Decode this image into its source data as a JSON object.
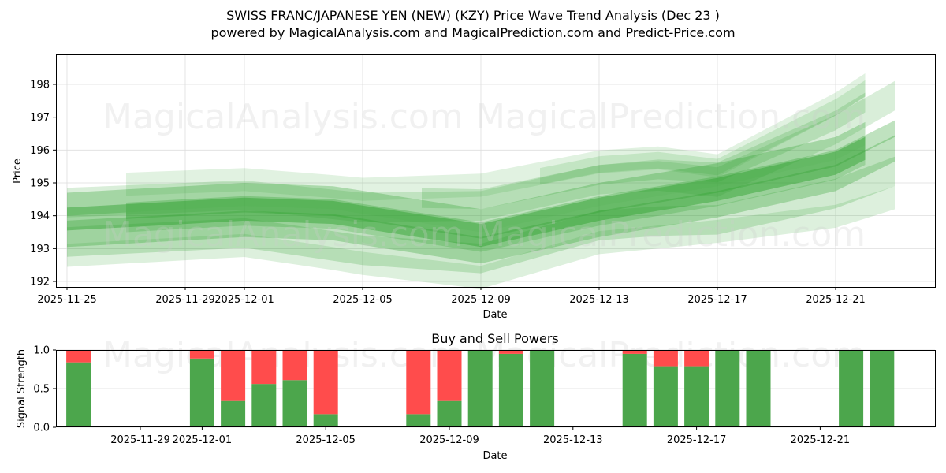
{
  "header": {
    "title": "SWISS FRANC/JAPANESE YEN (NEW) (KZY) Price Wave Trend Analysis (Dec 23 )",
    "subtitle": "powered by MagicalAnalysis.com and MagicalPrediction.com and Predict-Price.com"
  },
  "watermarks": [
    "MagicalAnalysis.com",
    "MagicalPrediction.com"
  ],
  "colors": {
    "wave": "#2ca02c",
    "buy": "#4ca64c",
    "sell": "#ff4c4c",
    "grid": "#dddddd"
  },
  "chart_data": [
    {
      "type": "area",
      "title": "",
      "xlabel": "Date",
      "ylabel": "Price",
      "ylim": [
        191.9,
        198.9
      ],
      "yticks": [
        192,
        193,
        194,
        195,
        196,
        197,
        198
      ],
      "xticks": [
        "2025-11-25",
        "2025-11-29",
        "2025-12-01",
        "2025-12-05",
        "2025-12-09",
        "2025-12-13",
        "2025-12-17",
        "2025-12-21"
      ],
      "grid": true,
      "description": "Overlapping translucent green wave bands showing price trend",
      "center_trend": {
        "x": [
          "2025-11-25",
          "2025-12-01",
          "2025-12-04",
          "2025-12-09",
          "2025-12-13",
          "2025-12-17",
          "2025-12-21",
          "2025-12-23"
        ],
        "y": [
          193.9,
          194.2,
          194.1,
          193.4,
          194.2,
          194.8,
          195.6,
          196.5
        ]
      },
      "upper_envelope": {
        "x": [
          "2025-11-25",
          "2025-12-01",
          "2025-12-05",
          "2025-12-09",
          "2025-12-13",
          "2025-12-15",
          "2025-12-17",
          "2025-12-21",
          "2025-12-23"
        ],
        "y": [
          195.0,
          195.2,
          194.9,
          195.1,
          195.8,
          195.9,
          195.6,
          197.6,
          198.8
        ]
      },
      "lower_envelope": {
        "x": [
          "2025-11-25",
          "2025-12-01",
          "2025-12-05",
          "2025-12-09",
          "2025-12-13",
          "2025-12-17",
          "2025-12-21",
          "2025-12-23"
        ],
        "y": [
          192.6,
          192.9,
          192.3,
          191.9,
          193.0,
          193.3,
          193.7,
          194.2
        ]
      }
    },
    {
      "type": "bar",
      "title": "Buy and Sell Powers",
      "xlabel": "Date",
      "ylabel": "Signal Strength",
      "ylim": [
        0,
        1
      ],
      "yticks": [
        "0.0",
        "0.5",
        "1.0"
      ],
      "xticks": [
        "2025-11-29",
        "2025-12-01",
        "2025-12-05",
        "2025-12-09",
        "2025-12-13",
        "2025-12-17",
        "2025-12-21"
      ],
      "grid": true,
      "categories": [
        "2025-11-27",
        "2025-12-01",
        "2025-12-02",
        "2025-12-03",
        "2025-12-04",
        "2025-12-05",
        "2025-12-08",
        "2025-12-09",
        "2025-12-10",
        "2025-12-11",
        "2025-12-12",
        "2025-12-15",
        "2025-12-16",
        "2025-12-17",
        "2025-12-18",
        "2025-12-19",
        "2025-12-22",
        "2025-12-23"
      ],
      "series": [
        {
          "name": "Buy",
          "values": [
            0.84,
            0.89,
            0.34,
            0.56,
            0.61,
            0.17,
            0.17,
            0.34,
            1.0,
            0.95,
            1.0,
            0.95,
            0.79,
            0.79,
            1.0,
            1.0,
            1.0,
            1.0
          ]
        },
        {
          "name": "Sell",
          "values": [
            0.16,
            0.11,
            0.66,
            0.44,
            0.39,
            0.83,
            0.83,
            0.66,
            0.0,
            0.05,
            0.0,
            0.05,
            0.21,
            0.21,
            0.0,
            0.0,
            0.0,
            0.0
          ]
        }
      ]
    }
  ]
}
